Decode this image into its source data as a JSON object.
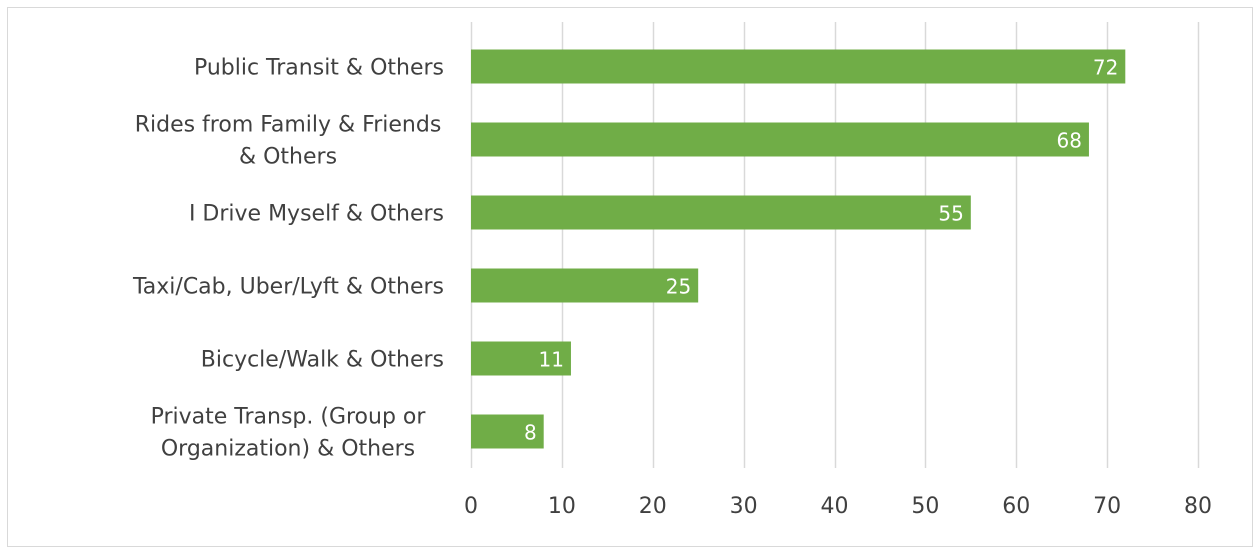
{
  "chart_data": {
    "type": "bar",
    "orientation": "horizontal",
    "categories": [
      [
        "Public Transit & Others"
      ],
      [
        "Rides from Family & Friends",
        "& Others"
      ],
      [
        "I Drive Myself & Others"
      ],
      [
        "Taxi/Cab, Uber/Lyft & Others"
      ],
      [
        "Bicycle/Walk & Others"
      ],
      [
        "Private Transp. (Group or",
        "Organization) & Others"
      ]
    ],
    "values": [
      72,
      68,
      55,
      25,
      11,
      8
    ],
    "xlim": [
      0,
      80
    ],
    "xticks": [
      "0",
      "10",
      "20",
      "30",
      "40",
      "50",
      "60",
      "70",
      "80"
    ],
    "grid": "vertical",
    "data_labels": "inside-end",
    "bar_color": "#70ad47",
    "grid_color": "#d9d9d9",
    "label_color": "#404040",
    "data_label_color": "#ffffff"
  }
}
